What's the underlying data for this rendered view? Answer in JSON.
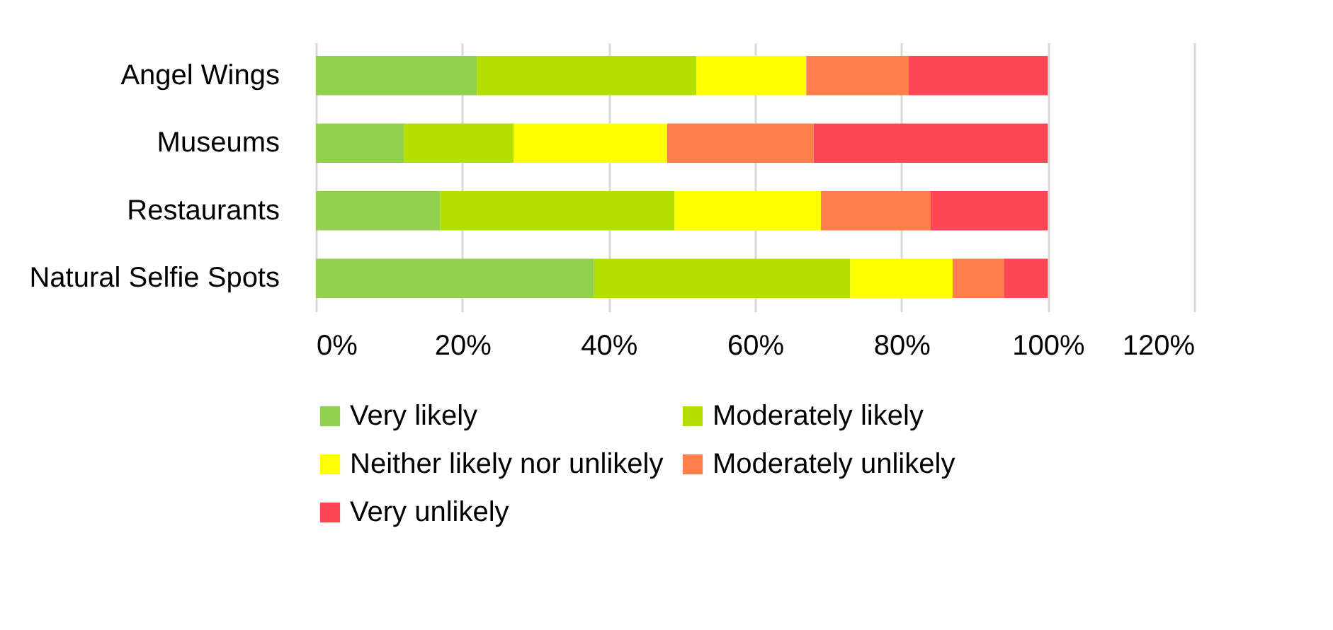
{
  "chart_data": {
    "type": "bar",
    "orientation": "horizontal",
    "stacked": true,
    "categories": [
      "Angel Wings",
      "Museums",
      "Restaurants",
      "Natural Selfie Spots"
    ],
    "series": [
      {
        "name": "Very likely",
        "color": "#92d050",
        "values": [
          22,
          12,
          17,
          38
        ]
      },
      {
        "name": "Moderately likely",
        "color": "#b4e000",
        "values": [
          30,
          15,
          32,
          35
        ]
      },
      {
        "name": "Neither likely nor unlikely",
        "color": "#ffff00",
        "values": [
          15,
          21,
          20,
          14
        ]
      },
      {
        "name": "Moderately unlikely",
        "color": "#ff7f4a",
        "values": [
          14,
          20,
          15,
          7
        ]
      },
      {
        "name": "Very unlikely",
        "color": "#ff4655",
        "values": [
          19,
          32,
          16,
          6
        ]
      }
    ],
    "xlim": [
      0,
      120
    ],
    "xticks": [
      {
        "value": 0,
        "label": "0%"
      },
      {
        "value": 20,
        "label": "20%"
      },
      {
        "value": 40,
        "label": "40%"
      },
      {
        "value": 60,
        "label": "60%"
      },
      {
        "value": 80,
        "label": "80%"
      },
      {
        "value": 100,
        "label": "100%"
      },
      {
        "value": 120,
        "label": "120%"
      }
    ],
    "grid": "x",
    "legend": "bottom"
  }
}
